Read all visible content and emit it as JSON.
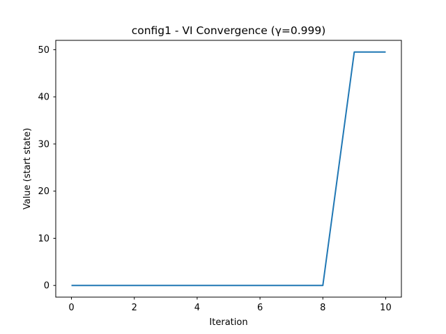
{
  "chart_data": {
    "type": "line",
    "title": "config1 - VI Convergence (γ=0.999)",
    "xlabel": "Iteration",
    "ylabel": "Value (start state)",
    "xlim": [
      -0.5,
      10.5
    ],
    "ylim": [
      -2.475,
      51.975
    ],
    "xticks": [
      0,
      2,
      4,
      6,
      8,
      10
    ],
    "yticks": [
      0,
      10,
      20,
      30,
      40,
      50
    ],
    "grid": false,
    "series": [
      {
        "color": "#1f77b4",
        "x": [
          0,
          1,
          2,
          3,
          4,
          5,
          6,
          7,
          8,
          9,
          10
        ],
        "y": [
          0,
          0,
          0,
          0,
          0,
          0,
          0,
          0,
          0,
          49.5,
          49.5
        ]
      }
    ]
  }
}
